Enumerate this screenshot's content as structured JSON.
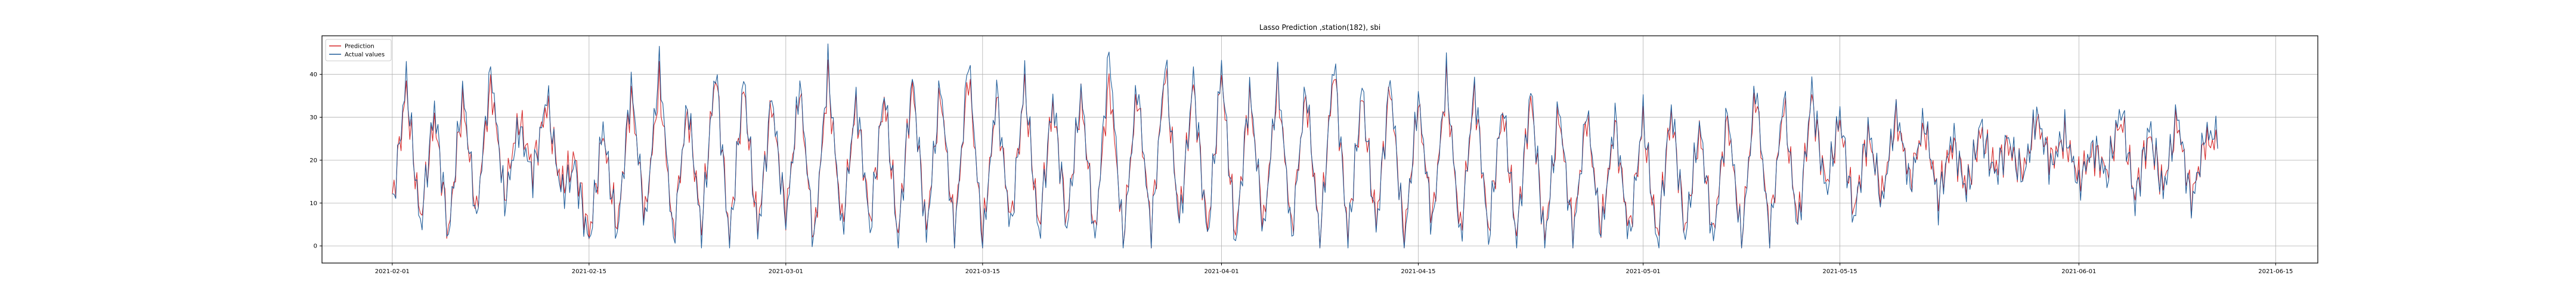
{
  "chart_data": {
    "type": "line",
    "title": "Lasso Prediction ,station(182), sbi",
    "xlabel": "",
    "ylabel": "",
    "x_range": [
      "2021-01-27",
      "2021-06-18"
    ],
    "ylim": [
      -4,
      49
    ],
    "x_ticks": [
      "2021-02-01",
      "2021-02-15",
      "2021-03-01",
      "2021-03-15",
      "2021-04-01",
      "2021-04-15",
      "2021-05-01",
      "2021-05-15",
      "2021-06-01",
      "2021-06-15"
    ],
    "y_ticks": [
      0,
      10,
      20,
      30,
      40
    ],
    "grid": true,
    "legend_position": "top-left",
    "series_style": [
      {
        "name": "Prediction",
        "color": "#d62728"
      },
      {
        "name": "Actual values",
        "color": "#1f5c99"
      }
    ],
    "series": [
      {
        "name": "Prediction",
        "x": [
          "2021-02-01",
          "2021-02-02",
          "2021-02-03",
          "2021-02-04",
          "2021-02-05",
          "2021-02-06",
          "2021-02-07",
          "2021-02-08",
          "2021-02-09",
          "2021-02-10",
          "2021-02-11",
          "2021-02-12",
          "2021-02-13",
          "2021-02-14",
          "2021-02-15",
          "2021-02-16",
          "2021-02-17",
          "2021-02-18",
          "2021-02-19",
          "2021-02-20",
          "2021-02-21",
          "2021-02-22",
          "2021-02-23",
          "2021-02-24",
          "2021-02-25",
          "2021-02-26",
          "2021-02-27",
          "2021-02-28",
          "2021-03-01",
          "2021-03-02",
          "2021-03-03",
          "2021-03-04",
          "2021-03-05",
          "2021-03-06",
          "2021-03-07",
          "2021-03-08",
          "2021-03-09",
          "2021-03-10",
          "2021-03-11",
          "2021-03-12",
          "2021-03-13",
          "2021-03-14",
          "2021-03-15",
          "2021-03-16",
          "2021-03-17",
          "2021-03-18",
          "2021-03-19",
          "2021-03-20",
          "2021-03-21",
          "2021-03-22",
          "2021-03-23",
          "2021-03-24",
          "2021-03-25",
          "2021-03-26",
          "2021-03-27",
          "2021-03-28",
          "2021-03-29",
          "2021-03-30",
          "2021-03-31",
          "2021-04-01",
          "2021-04-02",
          "2021-04-03",
          "2021-04-04",
          "2021-04-05",
          "2021-04-06",
          "2021-04-07",
          "2021-04-08",
          "2021-04-09",
          "2021-04-10",
          "2021-04-11",
          "2021-04-12",
          "2021-04-13",
          "2021-04-14",
          "2021-04-15",
          "2021-04-16",
          "2021-04-17",
          "2021-04-18",
          "2021-04-19",
          "2021-04-20",
          "2021-04-21",
          "2021-04-22",
          "2021-04-23",
          "2021-04-24",
          "2021-04-25",
          "2021-04-26",
          "2021-04-27",
          "2021-04-28",
          "2021-04-29",
          "2021-04-30",
          "2021-05-01",
          "2021-05-02",
          "2021-05-03",
          "2021-05-04",
          "2021-05-05",
          "2021-05-06",
          "2021-05-07",
          "2021-05-08",
          "2021-05-09",
          "2021-05-10",
          "2021-05-11",
          "2021-05-12",
          "2021-05-13",
          "2021-05-14",
          "2021-05-15",
          "2021-05-16",
          "2021-05-17",
          "2021-05-18",
          "2021-05-19",
          "2021-05-20",
          "2021-05-21",
          "2021-05-22",
          "2021-05-23",
          "2021-05-24",
          "2021-05-25",
          "2021-05-26",
          "2021-05-27",
          "2021-05-28",
          "2021-05-29",
          "2021-05-30",
          "2021-05-31",
          "2021-06-01",
          "2021-06-02",
          "2021-06-03",
          "2021-06-04",
          "2021-06-05",
          "2021-06-06",
          "2021-06-07",
          "2021-06-08",
          "2021-06-09",
          "2021-06-10"
        ],
        "values": [
          10,
          36,
          6,
          30,
          3,
          34,
          8,
          38,
          12,
          30,
          18,
          33,
          14,
          20,
          2,
          26,
          4,
          35,
          7,
          38,
          3,
          32,
          5,
          41,
          2,
          37,
          4,
          33,
          7,
          36,
          1,
          39,
          5,
          33,
          6,
          35,
          3,
          38,
          4,
          36,
          3,
          40,
          2,
          34,
          5,
          37,
          4,
          33,
          6,
          35,
          3,
          39,
          2,
          36,
          4,
          41,
          6,
          37,
          3,
          40,
          2,
          35,
          5,
          38,
          4,
          36,
          2,
          42,
          3,
          35,
          5,
          37,
          2,
          33,
          6,
          38,
          3,
          36,
          4,
          32,
          3,
          35,
          2,
          31,
          3,
          30,
          4,
          28,
          3,
          29,
          2,
          31,
          4,
          27,
          3,
          30,
          2,
          36,
          3,
          33,
          5,
          34,
          14,
          29,
          8,
          26,
          12,
          30,
          16,
          28,
          12,
          24,
          14,
          26,
          18,
          23,
          17,
          29,
          20,
          25,
          16,
          22,
          18,
          30,
          12,
          26,
          14,
          29,
          11,
          24
        ]
      },
      {
        "name": "Actual values",
        "x": [
          "2021-02-01",
          "2021-02-02",
          "2021-02-03",
          "2021-02-04",
          "2021-02-05",
          "2021-02-06",
          "2021-02-07",
          "2021-02-08",
          "2021-02-09",
          "2021-02-10",
          "2021-02-11",
          "2021-02-12",
          "2021-02-13",
          "2021-02-14",
          "2021-02-15",
          "2021-02-16",
          "2021-02-17",
          "2021-02-18",
          "2021-02-19",
          "2021-02-20",
          "2021-02-21",
          "2021-02-22",
          "2021-02-23",
          "2021-02-24",
          "2021-02-25",
          "2021-02-26",
          "2021-02-27",
          "2021-02-28",
          "2021-03-01",
          "2021-03-02",
          "2021-03-03",
          "2021-03-04",
          "2021-03-05",
          "2021-03-06",
          "2021-03-07",
          "2021-03-08",
          "2021-03-09",
          "2021-03-10",
          "2021-03-11",
          "2021-03-12",
          "2021-03-13",
          "2021-03-14",
          "2021-03-15",
          "2021-03-16",
          "2021-03-17",
          "2021-03-18",
          "2021-03-19",
          "2021-03-20",
          "2021-03-21",
          "2021-03-22",
          "2021-03-23",
          "2021-03-24",
          "2021-03-25",
          "2021-03-26",
          "2021-03-27",
          "2021-03-28",
          "2021-03-29",
          "2021-03-30",
          "2021-03-31",
          "2021-04-01",
          "2021-04-02",
          "2021-04-03",
          "2021-04-04",
          "2021-04-05",
          "2021-04-06",
          "2021-04-07",
          "2021-04-08",
          "2021-04-09",
          "2021-04-10",
          "2021-04-11",
          "2021-04-12",
          "2021-04-13",
          "2021-04-14",
          "2021-04-15",
          "2021-04-16",
          "2021-04-17",
          "2021-04-18",
          "2021-04-19",
          "2021-04-20",
          "2021-04-21",
          "2021-04-22",
          "2021-04-23",
          "2021-04-24",
          "2021-04-25",
          "2021-04-26",
          "2021-04-27",
          "2021-04-28",
          "2021-04-29",
          "2021-04-30",
          "2021-05-01",
          "2021-05-02",
          "2021-05-03",
          "2021-05-04",
          "2021-05-05",
          "2021-05-06",
          "2021-05-07",
          "2021-05-08",
          "2021-05-09",
          "2021-05-10",
          "2021-05-11",
          "2021-05-12",
          "2021-05-13",
          "2021-05-14",
          "2021-05-15",
          "2021-05-16",
          "2021-05-17",
          "2021-05-18",
          "2021-05-19",
          "2021-05-20",
          "2021-05-21",
          "2021-05-22",
          "2021-05-23",
          "2021-05-24",
          "2021-05-25",
          "2021-05-26",
          "2021-05-27",
          "2021-05-28",
          "2021-05-29",
          "2021-05-30",
          "2021-05-31",
          "2021-06-01",
          "2021-06-02",
          "2021-06-03",
          "2021-06-04",
          "2021-06-05",
          "2021-06-06",
          "2021-06-07",
          "2021-06-08",
          "2021-06-09",
          "2021-06-10"
        ],
        "values": [
          8,
          39,
          4,
          33,
          2,
          37,
          6,
          42,
          10,
          28,
          16,
          35,
          12,
          18,
          0,
          28,
          2,
          38,
          5,
          43,
          1,
          34,
          3,
          42,
          0,
          39,
          2,
          35,
          5,
          38,
          0,
          42,
          3,
          35,
          4,
          37,
          1,
          40,
          2,
          38,
          1,
          44,
          0,
          36,
          3,
          39,
          2,
          35,
          4,
          37,
          1,
          46,
          0,
          38,
          2,
          43,
          4,
          39,
          1,
          42,
          0,
          37,
          3,
          40,
          2,
          38,
          0,
          44,
          1,
          37,
          3,
          39,
          0,
          35,
          4,
          40,
          1,
          38,
          2,
          34,
          1,
          37,
          0,
          33,
          1,
          32,
          2,
          30,
          1,
          31,
          0,
          33,
          2,
          29,
          1,
          32,
          0,
          38,
          1,
          35,
          3,
          36,
          12,
          31,
          6,
          28,
          10,
          32,
          14,
          30,
          10,
          26,
          12,
          28,
          16,
          25,
          15,
          31,
          18,
          27,
          14,
          24,
          16,
          33,
          10,
          28,
          12,
          31,
          9,
          26
        ]
      }
    ]
  }
}
